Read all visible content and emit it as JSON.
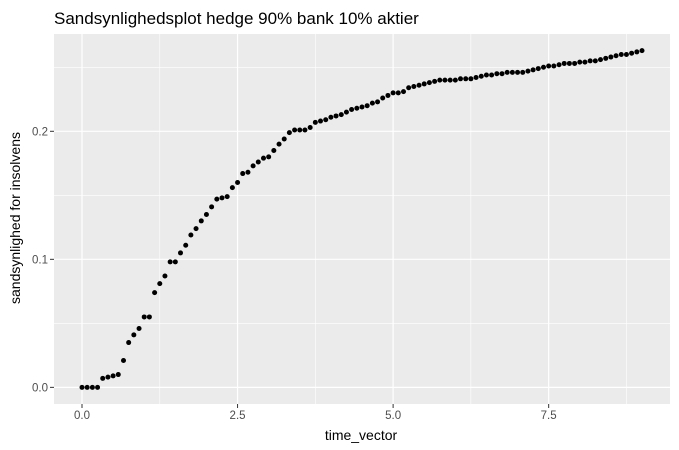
{
  "chart_data": {
    "type": "scatter",
    "title": "Sandsynlighedsplot hedge 90% bank 10% aktier",
    "xlabel": "time_vector",
    "ylabel": "sandsynlighed for insolvens",
    "xlim": [
      -0.45,
      9.45
    ],
    "ylim": [
      -0.013,
      0.276
    ],
    "x_ticks": [
      0.0,
      2.5,
      5.0,
      7.5
    ],
    "x_tick_labels": [
      "0.0",
      "2.5",
      "5.0",
      "7.5"
    ],
    "y_ticks": [
      0.0,
      0.1,
      0.2
    ],
    "y_tick_labels": [
      "0.0",
      "0.1",
      "0.2"
    ],
    "x_minor_ticks": [
      1.25,
      3.75,
      6.25,
      8.75
    ],
    "y_minor_ticks": [
      0.05,
      0.15,
      0.25
    ],
    "grid": true,
    "legend": "none",
    "panel_background": "#ebebeb",
    "grid_color": "#ffffff",
    "point_color": "#000000",
    "series": [
      {
        "x": [
          0.0,
          0.083,
          0.167,
          0.25,
          0.333,
          0.417,
          0.5,
          0.583,
          0.667,
          0.75,
          0.833,
          0.917,
          1.0,
          1.083,
          1.167,
          1.25,
          1.333,
          1.417,
          1.5,
          1.583,
          1.667,
          1.75,
          1.833,
          1.917,
          2.0,
          2.083,
          2.167,
          2.25,
          2.333,
          2.417,
          2.5,
          2.583,
          2.667,
          2.75,
          2.833,
          2.917,
          3.0,
          3.083,
          3.167,
          3.25,
          3.333,
          3.417,
          3.5,
          3.583,
          3.667,
          3.75,
          3.833,
          3.917,
          4.0,
          4.083,
          4.167,
          4.25,
          4.333,
          4.417,
          4.5,
          4.583,
          4.667,
          4.75,
          4.833,
          4.917,
          5.0,
          5.083,
          5.167,
          5.25,
          5.333,
          5.417,
          5.5,
          5.583,
          5.667,
          5.75,
          5.833,
          5.917,
          6.0,
          6.083,
          6.167,
          6.25,
          6.333,
          6.417,
          6.5,
          6.583,
          6.667,
          6.75,
          6.833,
          6.917,
          7.0,
          7.083,
          7.167,
          7.25,
          7.333,
          7.417,
          7.5,
          7.583,
          7.667,
          7.75,
          7.833,
          7.917,
          8.0,
          8.083,
          8.167,
          8.25,
          8.333,
          8.417,
          8.5,
          8.583,
          8.667,
          8.75,
          8.833,
          8.917,
          9.0
        ],
        "y": [
          0.0,
          0.0,
          0.0,
          0.0,
          0.007,
          0.008,
          0.009,
          0.01,
          0.021,
          0.035,
          0.041,
          0.046,
          0.055,
          0.055,
          0.074,
          0.081,
          0.087,
          0.098,
          0.098,
          0.105,
          0.111,
          0.119,
          0.124,
          0.13,
          0.135,
          0.141,
          0.147,
          0.148,
          0.149,
          0.156,
          0.16,
          0.167,
          0.168,
          0.173,
          0.176,
          0.179,
          0.18,
          0.185,
          0.19,
          0.194,
          0.199,
          0.201,
          0.201,
          0.201,
          0.203,
          0.207,
          0.208,
          0.209,
          0.211,
          0.212,
          0.213,
          0.215,
          0.217,
          0.218,
          0.219,
          0.22,
          0.222,
          0.223,
          0.226,
          0.228,
          0.23,
          0.23,
          0.231,
          0.234,
          0.235,
          0.236,
          0.237,
          0.238,
          0.239,
          0.24,
          0.24,
          0.24,
          0.24,
          0.241,
          0.241,
          0.241,
          0.242,
          0.243,
          0.244,
          0.244,
          0.245,
          0.245,
          0.246,
          0.246,
          0.246,
          0.246,
          0.247,
          0.248,
          0.249,
          0.25,
          0.251,
          0.251,
          0.252,
          0.253,
          0.253,
          0.253,
          0.254,
          0.254,
          0.255,
          0.255,
          0.256,
          0.257,
          0.258,
          0.259,
          0.26,
          0.26,
          0.261,
          0.262,
          0.263
        ]
      }
    ]
  }
}
